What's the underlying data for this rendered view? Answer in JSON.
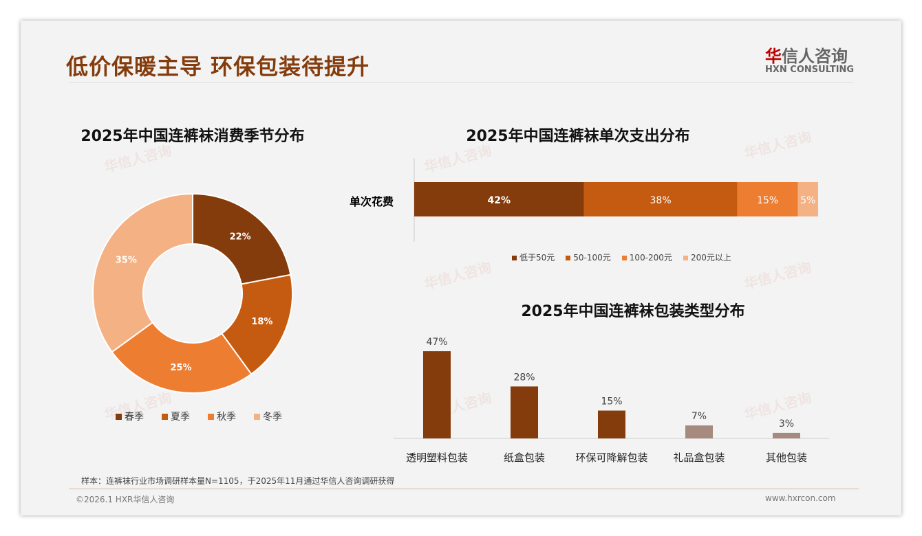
{
  "header": {
    "title": "低价保暖主导 环保包装待提升",
    "logo_cn_first": "华",
    "logo_cn_rest": "信人咨询",
    "logo_en": "HXN CONSULTING"
  },
  "watermark": "华信人咨询",
  "footer": {
    "note": "样本：连裤袜行业市场调研样本量N=1105，于2025年11月通过华信人咨询调研获得",
    "copyright": "©2026.1 HXR华信人咨询",
    "url": "www.hxrcon.com"
  },
  "chart_data": [
    {
      "type": "pie",
      "title": "2025年中国连裤袜消费季节分布",
      "categories": [
        "春季",
        "夏季",
        "秋季",
        "冬季"
      ],
      "values": [
        22,
        18,
        25,
        35
      ],
      "labels": [
        "22%",
        "18%",
        "25%",
        "35%"
      ],
      "colors": [
        "#843c0c",
        "#c55a11",
        "#ed7d31",
        "#f4b183"
      ],
      "legend": "bottom"
    },
    {
      "type": "bar",
      "title": "2025年中国连裤袜单次支出分布",
      "stacked": true,
      "categories": [
        "单次花费"
      ],
      "series": [
        {
          "name": "低于50元",
          "values": [
            42
          ],
          "label": "42%"
        },
        {
          "name": "50-100元",
          "values": [
            38
          ],
          "label": "38%"
        },
        {
          "name": "100-200元",
          "values": [
            15
          ],
          "label": "15%"
        },
        {
          "name": "200元以上",
          "values": [
            5
          ],
          "label": "5%"
        }
      ],
      "colors": [
        "#843c0c",
        "#c55a11",
        "#ed7d31",
        "#f4b183"
      ],
      "legend": "bottom"
    },
    {
      "type": "bar",
      "title": "2025年中国连裤袜包装类型分布",
      "categories": [
        "透明塑料包装",
        "纸盒包装",
        "环保可降解包装",
        "礼品盒包装",
        "其他包装"
      ],
      "values": [
        47,
        28,
        15,
        7,
        3
      ],
      "labels": [
        "47%",
        "28%",
        "15%",
        "7%",
        "3%"
      ],
      "colors": [
        "#843c0c",
        "#843c0c",
        "#843c0c",
        "#a68a80",
        "#a68a80"
      ],
      "ylim": [
        0,
        50
      ]
    }
  ]
}
